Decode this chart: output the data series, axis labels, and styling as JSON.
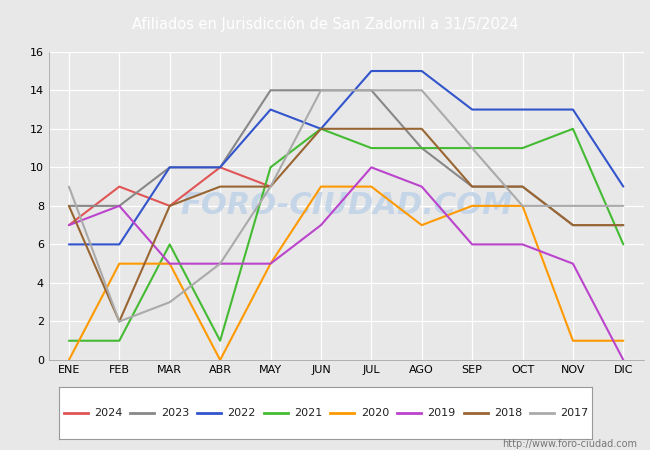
{
  "title": "Afiliados en Jurisdicción de San Zadornil a 31/5/2024",
  "title_bg_color": "#5b7fc4",
  "title_text_color": "#ffffff",
  "xlabel": "",
  "ylabel": "",
  "ylim": [
    0,
    16
  ],
  "yticks": [
    0,
    2,
    4,
    6,
    8,
    10,
    12,
    14,
    16
  ],
  "months": [
    "ENE",
    "FEB",
    "MAR",
    "ABR",
    "MAY",
    "JUN",
    "JUL",
    "AGO",
    "SEP",
    "OCT",
    "NOV",
    "DIC"
  ],
  "watermark_url": "http://www.foro-ciudad.com",
  "series": [
    {
      "year": "2024",
      "color": "#e05555",
      "data": [
        7,
        9,
        8,
        10,
        9,
        null,
        null,
        null,
        null,
        null,
        null,
        null
      ]
    },
    {
      "year": "2023",
      "color": "#888888",
      "data": [
        8,
        8,
        10,
        10,
        14,
        14,
        14,
        11,
        9,
        9,
        7,
        7
      ]
    },
    {
      "year": "2022",
      "color": "#3355cc",
      "data": [
        6,
        6,
        10,
        10,
        13,
        12,
        15,
        15,
        13,
        13,
        13,
        9
      ]
    },
    {
      "year": "2021",
      "color": "#44bb33",
      "data": [
        1,
        1,
        6,
        1,
        10,
        12,
        11,
        11,
        11,
        11,
        12,
        6
      ]
    },
    {
      "year": "2020",
      "color": "#ff9900",
      "data": [
        0,
        5,
        5,
        0,
        5,
        9,
        9,
        7,
        8,
        8,
        1,
        1
      ]
    },
    {
      "year": "2019",
      "color": "#bb44cc",
      "data": [
        7,
        8,
        5,
        5,
        5,
        7,
        10,
        9,
        6,
        6,
        5,
        0
      ]
    },
    {
      "year": "2018",
      "color": "#996633",
      "data": [
        8,
        2,
        8,
        9,
        9,
        12,
        12,
        12,
        9,
        9,
        7,
        7
      ]
    },
    {
      "year": "2017",
      "color": "#aaaaaa",
      "data": [
        9,
        2,
        3,
        5,
        9,
        14,
        14,
        14,
        11,
        8,
        8,
        8
      ]
    }
  ],
  "fig_bg_color": "#e8e8e8",
  "plot_bg_color": "#e8e8e8",
  "grid_color": "#ffffff",
  "watermark_text": "FORO-CIUDAD.COM",
  "watermark_color": "#c5d5e8",
  "watermark_fontsize": 22,
  "line_width": 1.5,
  "tick_fontsize": 8,
  "legend_fontsize": 8
}
